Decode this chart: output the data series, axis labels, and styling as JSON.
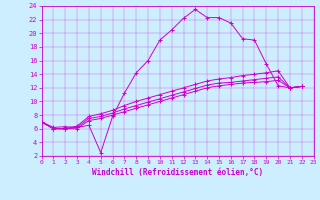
{
  "xlabel": "Windchill (Refroidissement éolien,°C)",
  "background_color": "#cceeff",
  "line_color": "#cc00cc",
  "xlim": [
    0,
    23
  ],
  "ylim": [
    2,
    24
  ],
  "xticks": [
    0,
    1,
    2,
    3,
    4,
    5,
    6,
    7,
    8,
    9,
    10,
    11,
    12,
    13,
    14,
    15,
    16,
    17,
    18,
    19,
    20,
    21,
    22,
    23
  ],
  "yticks": [
    2,
    4,
    6,
    8,
    10,
    12,
    14,
    16,
    18,
    20,
    22,
    24
  ],
  "series": [
    {
      "x": [
        0,
        1,
        2,
        3,
        4,
        5,
        6,
        7,
        8,
        9,
        10,
        11,
        12,
        13,
        14,
        15,
        16,
        17,
        18,
        19,
        20,
        21,
        22
      ],
      "y": [
        7.0,
        6.2,
        6.3,
        6.2,
        6.5,
        2.5,
        7.8,
        11.2,
        14.2,
        16.0,
        19.0,
        20.5,
        22.2,
        23.5,
        22.3,
        22.3,
        21.5,
        19.2,
        19.0,
        15.5,
        12.3,
        12.0,
        12.2
      ]
    },
    {
      "x": [
        0,
        1,
        2,
        3,
        4,
        5,
        6,
        7,
        8,
        9,
        10,
        11,
        12,
        13,
        14,
        15,
        16,
        17,
        18,
        19,
        20,
        21,
        22
      ],
      "y": [
        7.0,
        6.0,
        6.0,
        6.0,
        7.2,
        7.5,
        8.0,
        8.5,
        9.0,
        9.5,
        10.0,
        10.5,
        11.0,
        11.5,
        12.0,
        12.3,
        12.5,
        12.7,
        12.8,
        12.9,
        13.1,
        12.0,
        12.2
      ]
    },
    {
      "x": [
        0,
        1,
        2,
        3,
        4,
        5,
        6,
        7,
        8,
        9,
        10,
        11,
        12,
        13,
        14,
        15,
        16,
        17,
        18,
        19,
        20,
        21,
        22
      ],
      "y": [
        7.0,
        6.0,
        6.0,
        6.2,
        7.5,
        7.8,
        8.3,
        8.9,
        9.4,
        9.9,
        10.4,
        10.9,
        11.4,
        11.9,
        12.4,
        12.7,
        12.8,
        13.0,
        13.2,
        13.4,
        13.6,
        12.0,
        12.2
      ]
    },
    {
      "x": [
        0,
        1,
        2,
        3,
        4,
        5,
        6,
        7,
        8,
        9,
        10,
        11,
        12,
        13,
        14,
        15,
        16,
        17,
        18,
        19,
        20,
        21,
        22
      ],
      "y": [
        7.0,
        6.0,
        6.0,
        6.4,
        7.8,
        8.2,
        8.7,
        9.4,
        10.0,
        10.5,
        11.0,
        11.5,
        12.0,
        12.5,
        13.0,
        13.3,
        13.5,
        13.8,
        14.0,
        14.2,
        14.5,
        12.0,
        12.2
      ]
    }
  ]
}
